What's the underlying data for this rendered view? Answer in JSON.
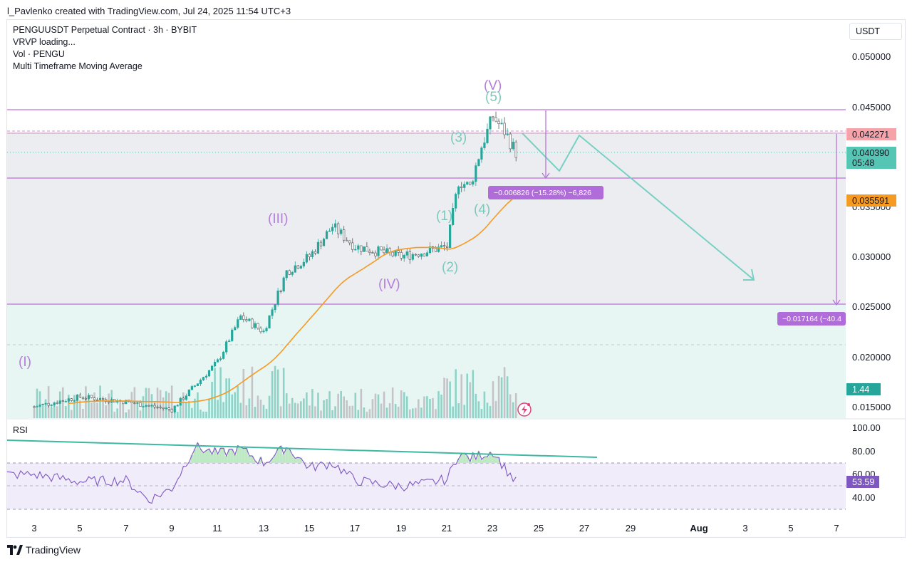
{
  "header": {
    "text": "l_Pavlenko created with TradingView.com, Jul 24, 2025 11:54 UTC+3"
  },
  "legend": {
    "symbol": "PENGUUSDT Perpetual Contract · 3h · BYBIT",
    "vrvp": "VRVP loading...",
    "vol": "Vol · PENGU",
    "mtma": "Multi Timeframe Moving Average"
  },
  "currency": "USDT",
  "price_axis": {
    "labels": [
      "0.050000",
      "0.045000",
      "0.030000",
      "0.025000",
      "0.020000",
      "0.015000"
    ],
    "tag_upper": "0.042271",
    "tag_current": "0.040390",
    "tag_countdown": "05:48",
    "tag_ma": "0.035591",
    "tag_volume": "1.44 B"
  },
  "time_axis": [
    "3",
    "5",
    "7",
    "9",
    "11",
    "13",
    "15",
    "17",
    "19",
    "21",
    "23",
    "25",
    "27",
    "29",
    "Aug",
    "3",
    "5",
    "7"
  ],
  "rsi": {
    "label": "RSI",
    "axis": [
      "100.00",
      "80.00",
      "60.00",
      "40.00"
    ],
    "value": "53.59"
  },
  "measure_labels": {
    "short": "−0.006826 (−15.28%) −6,826",
    "long": "−0.017164 (−40.4"
  },
  "wave_labels": {
    "I": "(I)",
    "III": "(III)",
    "IV": "(IV)",
    "V": "(V)",
    "w1": "(1)",
    "w2": "(2)",
    "w3": "(3)",
    "w4": "(4)",
    "w5": "(5)"
  },
  "footer": {
    "brand": "TradingView"
  },
  "colors": {
    "bull": "#26a69a",
    "bear": "#555555",
    "wave_major": "#9c57c9",
    "wave_minor": "#5fb8a8",
    "ma": "#f59a23",
    "level_line": "#b24fd1",
    "projection": "#78d0c4",
    "rsi": "#7e57c2",
    "tag_upper": "#f5a3a8",
    "tag_current": "#56c6b4",
    "tag_ma": "#f59a23",
    "tag_volume": "#26a69a",
    "tag_rsi": "#7e57c2",
    "measure": "#b06cd8"
  },
  "chart_data": {
    "type": "candlestick",
    "symbol": "PENGUUSDT",
    "interval": "3h",
    "exchange": "BYBIT",
    "ylim": [
      0.0135,
      0.0525
    ],
    "ohlc_approx": [
      {
        "date": "Jul 3",
        "close": 0.015
      },
      {
        "date": "Jul 5",
        "close": 0.016
      },
      {
        "date": "Jul 7",
        "close": 0.0155
      },
      {
        "date": "Jul 9",
        "close": 0.0147
      },
      {
        "date": "Jul 11",
        "close": 0.0195
      },
      {
        "date": "Jul 12",
        "close": 0.024
      },
      {
        "date": "Jul 13",
        "close": 0.0225
      },
      {
        "date": "Jul 14",
        "close": 0.0285
      },
      {
        "date": "Jul 15",
        "close": 0.03
      },
      {
        "date": "Jul 16",
        "close": 0.033
      },
      {
        "date": "Jul 17",
        "close": 0.031
      },
      {
        "date": "Jul 18",
        "close": 0.0305
      },
      {
        "date": "Jul 19",
        "close": 0.03
      },
      {
        "date": "Jul 20",
        "close": 0.0305
      },
      {
        "date": "Jul 21",
        "close": 0.031
      },
      {
        "date": "Jul 21.5",
        "close": 0.0375
      },
      {
        "date": "Jul 22",
        "close": 0.037
      },
      {
        "date": "Jul 22.5",
        "close": 0.041
      },
      {
        "date": "Jul 23",
        "close": 0.044
      },
      {
        "date": "Jul 23.5",
        "close": 0.0425
      },
      {
        "date": "Jul 24",
        "close": 0.0404
      }
    ],
    "levels": [
      0.0447,
      0.04227,
      0.038,
      0.0253
    ],
    "rsi_series": [
      {
        "date": "Jul 3",
        "value": 60
      },
      {
        "date": "Jul 5",
        "value": 54
      },
      {
        "date": "Jul 7",
        "value": 55
      },
      {
        "date": "Jul 8",
        "value": 38
      },
      {
        "date": "Jul 9",
        "value": 48
      },
      {
        "date": "Jul 10",
        "value": 84
      },
      {
        "date": "Jul 11",
        "value": 78
      },
      {
        "date": "Jul 12",
        "value": 82
      },
      {
        "date": "Jul 13",
        "value": 70
      },
      {
        "date": "Jul 14",
        "value": 84
      },
      {
        "date": "Jul 15",
        "value": 66
      },
      {
        "date": "Jul 16",
        "value": 70
      },
      {
        "date": "Jul 17",
        "value": 55
      },
      {
        "date": "Jul 18",
        "value": 52
      },
      {
        "date": "Jul 19",
        "value": 50
      },
      {
        "date": "Jul 20",
        "value": 52
      },
      {
        "date": "Jul 21",
        "value": 56
      },
      {
        "date": "Jul 21.5",
        "value": 78
      },
      {
        "date": "Jul 22",
        "value": 74
      },
      {
        "date": "Jul 23",
        "value": 80
      },
      {
        "date": "Jul 23.5",
        "value": 66
      },
      {
        "date": "Jul 24",
        "value": 53.59
      }
    ]
  }
}
